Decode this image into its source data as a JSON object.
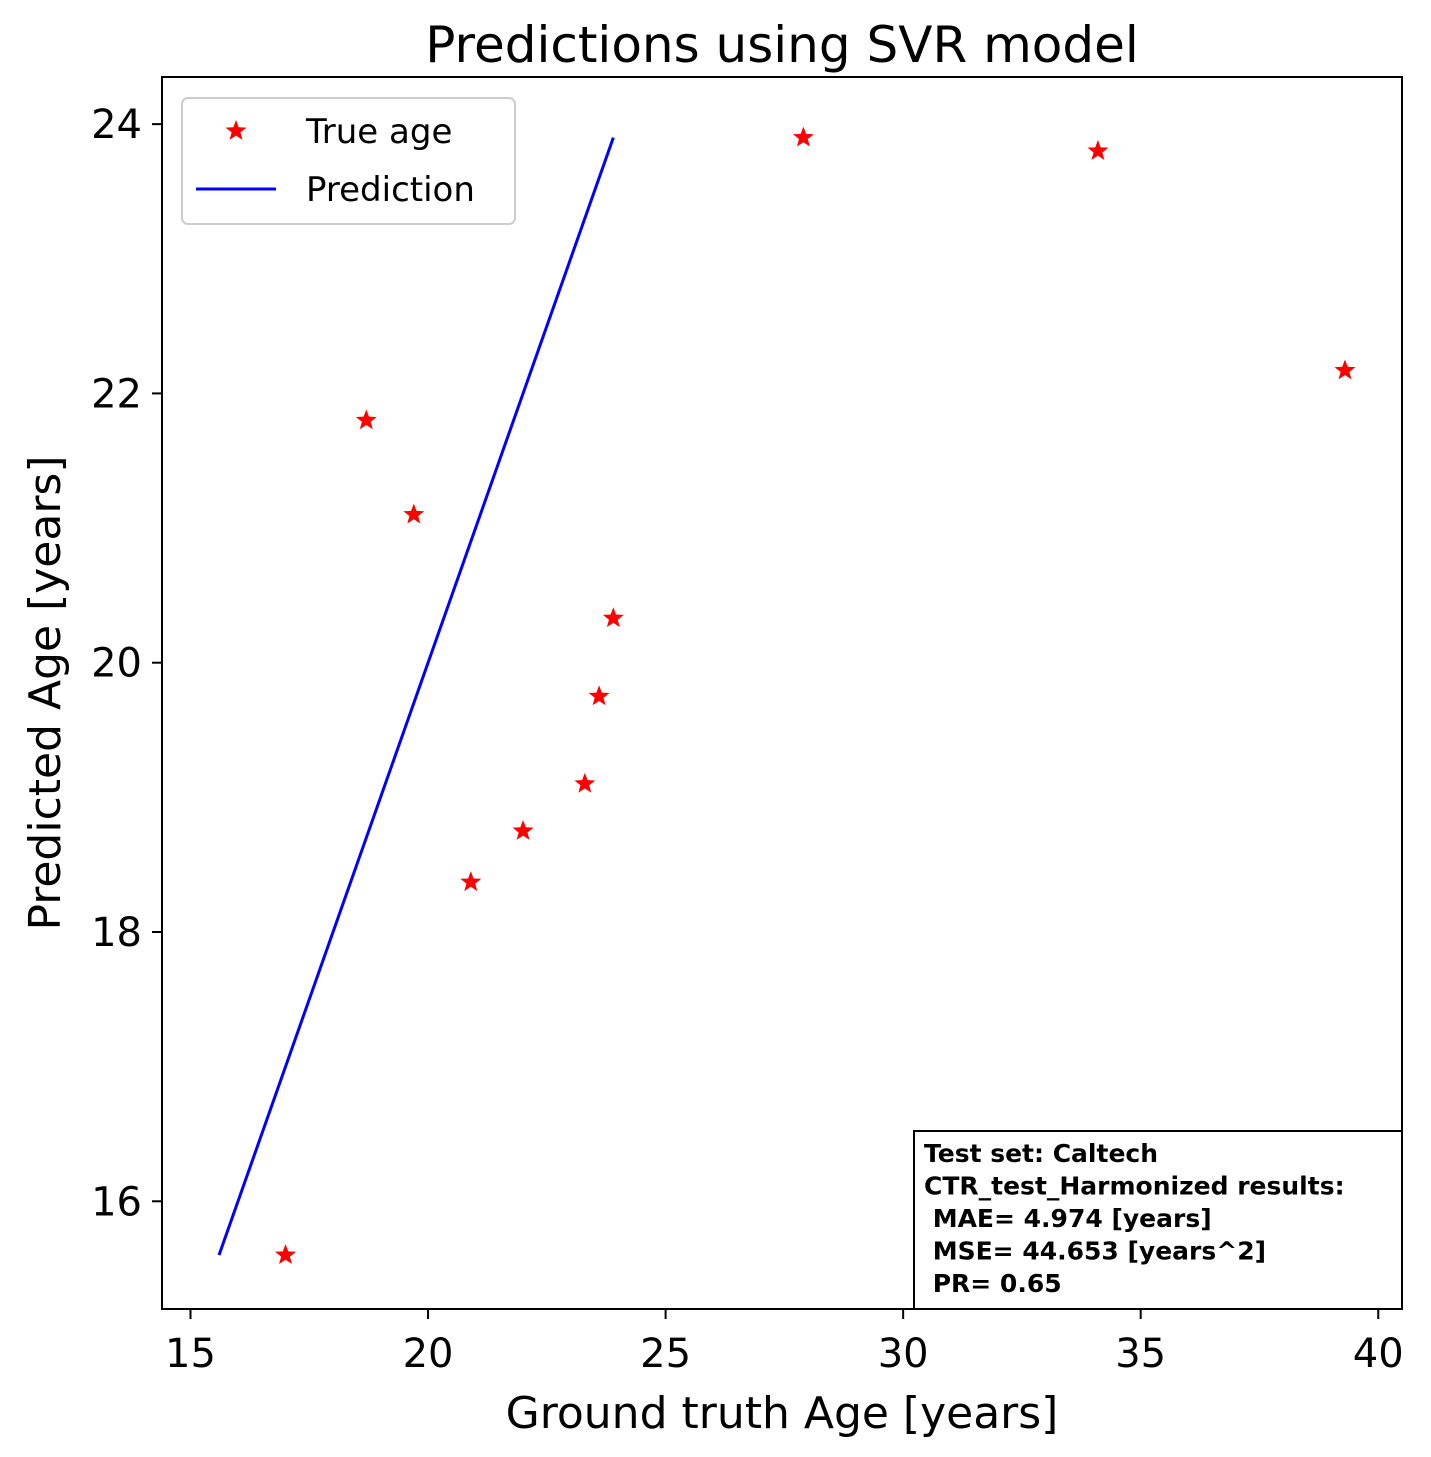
{
  "chart_data": {
    "type": "scatter",
    "title": "Predictions using SVR model",
    "xlabel": "Ground truth Age [years]",
    "ylabel": "Predicted Age [years]",
    "xlim": [
      14.4,
      40.5
    ],
    "ylim": [
      15.2,
      24.35
    ],
    "x_ticks": [
      15,
      20,
      25,
      30,
      35,
      40
    ],
    "y_ticks": [
      16,
      18,
      20,
      22,
      24
    ],
    "grid": false,
    "legend_position": "upper-left",
    "series": [
      {
        "name": "True age",
        "kind": "scatter",
        "marker": "star",
        "color": "#ff0000",
        "points": [
          {
            "x": 17.0,
            "y": 15.6
          },
          {
            "x": 18.7,
            "y": 21.8
          },
          {
            "x": 19.7,
            "y": 21.1
          },
          {
            "x": 20.9,
            "y": 18.37
          },
          {
            "x": 22.0,
            "y": 18.75
          },
          {
            "x": 23.3,
            "y": 19.1
          },
          {
            "x": 23.6,
            "y": 19.75
          },
          {
            "x": 23.9,
            "y": 20.33
          },
          {
            "x": 27.9,
            "y": 23.9
          },
          {
            "x": 34.1,
            "y": 23.8
          },
          {
            "x": 39.3,
            "y": 22.17
          }
        ]
      },
      {
        "name": "Prediction",
        "kind": "line",
        "color": "#0000ff",
        "points": [
          {
            "x": 15.6,
            "y": 15.6
          },
          {
            "x": 23.9,
            "y": 23.9
          }
        ]
      }
    ],
    "annotation": {
      "lines": [
        "Test set: Caltech",
        "CTR_test_Harmonized results:",
        " MAE= 4.974 [years]",
        " MSE= 44.653 [years^2]",
        " PR= 0.65"
      ]
    }
  }
}
